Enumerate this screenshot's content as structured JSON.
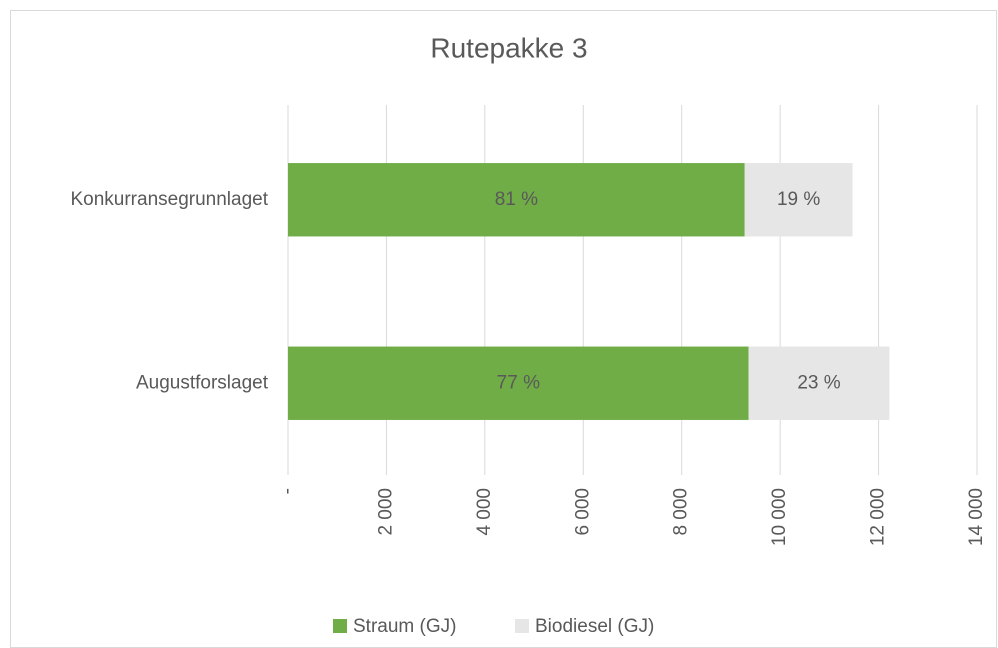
{
  "chart_data": {
    "type": "stacked_barh",
    "title": "Rutepakke 3",
    "categories": [
      "Konkurransegrunnlaget",
      "Augustforslaget"
    ],
    "series": [
      {
        "name": "Straum (GJ)",
        "color": "#70ad47",
        "values": [
          9280,
          9360
        ],
        "value_labels": [
          "81 %",
          "77 %"
        ]
      },
      {
        "name": "Biodiesel (GJ)",
        "color": "#e7e6e6",
        "values": [
          2190,
          2860
        ],
        "value_labels": [
          "19 %",
          "23 %"
        ]
      }
    ],
    "xlim": [
      0,
      14000
    ],
    "xticks": [
      {
        "value": 0,
        "label": "-"
      },
      {
        "value": 2000,
        "label": "2 000"
      },
      {
        "value": 4000,
        "label": "4 000"
      },
      {
        "value": 6000,
        "label": "6 000"
      },
      {
        "value": 8000,
        "label": "8 000"
      },
      {
        "value": 10000,
        "label": "10 000"
      },
      {
        "value": 12000,
        "label": "12 000"
      },
      {
        "value": 14000,
        "label": "14 000"
      }
    ],
    "grid": true,
    "legend": "bottom"
  }
}
